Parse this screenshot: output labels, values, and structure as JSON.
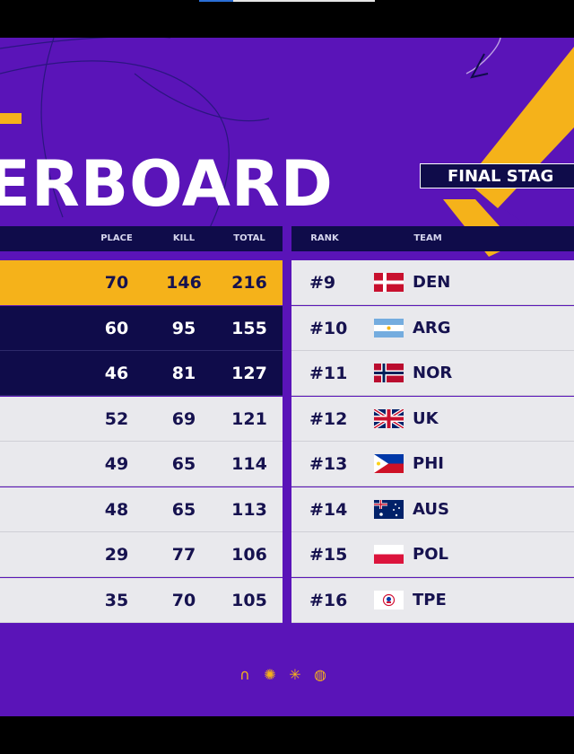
{
  "header": {
    "title": "ERBOARD",
    "stage": "FINAL STAG"
  },
  "columns_left": [
    "PLACE",
    "KILL",
    "TOTAL"
  ],
  "columns_right": [
    "RANK",
    "TEAM"
  ],
  "left_rows": [
    {
      "place": "70",
      "kill": "146",
      "total": "216",
      "style": "gold"
    },
    {
      "place": "60",
      "kill": "95",
      "total": "155",
      "style": "navy"
    },
    {
      "place": "46",
      "kill": "81",
      "total": "127",
      "style": "navy"
    },
    {
      "place": "52",
      "kill": "69",
      "total": "121",
      "style": "light"
    },
    {
      "place": "49",
      "kill": "65",
      "total": "114",
      "style": "light"
    },
    {
      "place": "48",
      "kill": "65",
      "total": "113",
      "style": "light"
    },
    {
      "place": "29",
      "kill": "77",
      "total": "106",
      "style": "light"
    },
    {
      "place": "35",
      "kill": "70",
      "total": "105",
      "style": "light"
    }
  ],
  "right_rows": [
    {
      "rank": "#9",
      "team": "DEN",
      "flag": "denmark-flag-icon"
    },
    {
      "rank": "#10",
      "team": "ARG",
      "flag": "argentina-flag-icon"
    },
    {
      "rank": "#11",
      "team": "NOR",
      "flag": "norway-flag-icon"
    },
    {
      "rank": "#12",
      "team": "UK",
      "flag": "uk-flag-icon"
    },
    {
      "rank": "#13",
      "team": "PHI",
      "flag": "philippines-flag-icon"
    },
    {
      "rank": "#14",
      "team": "AUS",
      "flag": "australia-flag-icon"
    },
    {
      "rank": "#15",
      "team": "POL",
      "flag": "poland-flag-icon"
    },
    {
      "rank": "#16",
      "team": "TPE",
      "flag": "chinese-taipei-flag-icon"
    }
  ],
  "sponsor_icons": [
    "headset-icon",
    "sun-icon",
    "burst-icon",
    "globe-icon"
  ],
  "colors": {
    "background": "#5a14b8",
    "accent": "#f5b21a",
    "navy": "#0f0c4a",
    "light": "#e9e9ed"
  }
}
